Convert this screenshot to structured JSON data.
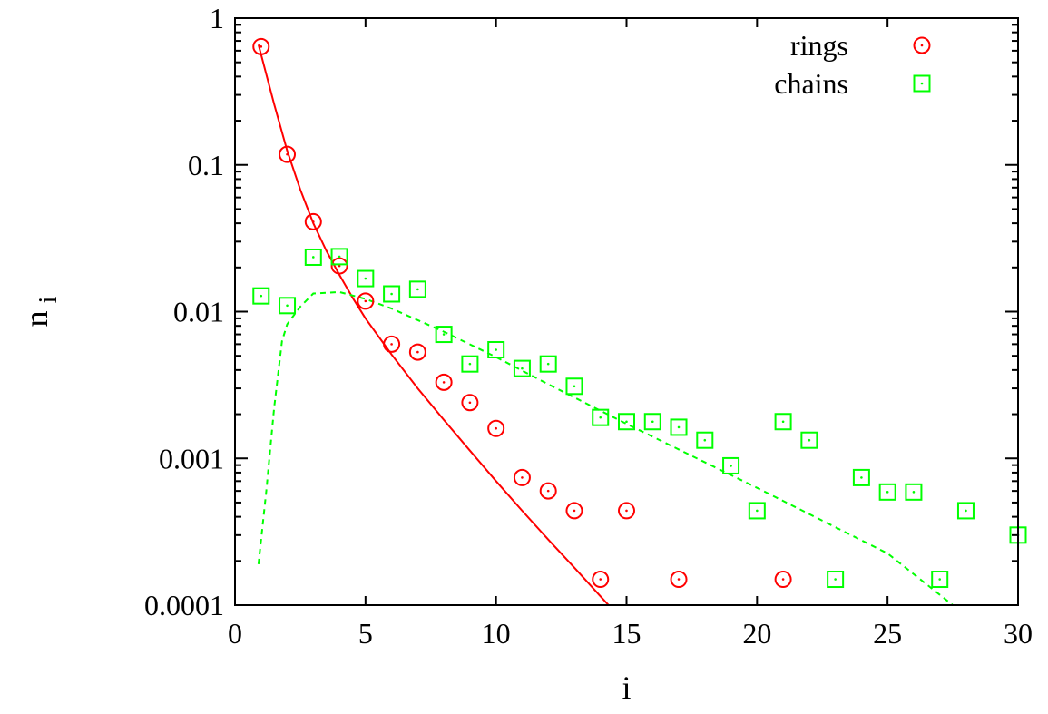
{
  "chart_data": {
    "type": "scatter",
    "xlabel": "i",
    "ylabel": {
      "base": "n",
      "subscript": "i"
    },
    "xlim": [
      0,
      30
    ],
    "ylim": [
      0.0001,
      1
    ],
    "yscale": "log",
    "grid": false,
    "legend_position": "top-right",
    "x_ticks": [
      {
        "value": 0,
        "label": "0"
      },
      {
        "value": 5,
        "label": "5"
      },
      {
        "value": 10,
        "label": "10"
      },
      {
        "value": 15,
        "label": "15"
      },
      {
        "value": 20,
        "label": "20"
      },
      {
        "value": 25,
        "label": "25"
      },
      {
        "value": 30,
        "label": "30"
      }
    ],
    "y_ticks": [
      {
        "value": 1,
        "label": "1"
      },
      {
        "value": 0.1,
        "label": "0.1"
      },
      {
        "value": 0.01,
        "label": "0.01"
      },
      {
        "value": 0.001,
        "label": "0.001"
      },
      {
        "value": 0.0001,
        "label": "0.0001"
      }
    ],
    "series": [
      {
        "name": "rings",
        "marker": "circle",
        "color": "#ff0000",
        "points": [
          [
            1,
            0.64
          ],
          [
            2,
            0.118
          ],
          [
            3,
            0.041
          ],
          [
            4,
            0.0205
          ],
          [
            5,
            0.0118
          ],
          [
            6,
            0.006
          ],
          [
            7,
            0.0053
          ],
          [
            8,
            0.0033
          ],
          [
            9,
            0.0024
          ],
          [
            10,
            0.0016
          ],
          [
            11,
            0.00074
          ],
          [
            12,
            0.0006
          ],
          [
            13,
            0.00044
          ],
          [
            14,
            0.00015
          ],
          [
            15,
            0.00044
          ],
          [
            17,
            0.00015
          ],
          [
            21,
            0.00015
          ]
        ]
      },
      {
        "name": "chains",
        "marker": "square",
        "color": "#00ff00",
        "points": [
          [
            1,
            0.0128
          ],
          [
            2,
            0.011
          ],
          [
            3,
            0.0235
          ],
          [
            4,
            0.0237
          ],
          [
            5,
            0.0168
          ],
          [
            6,
            0.0132
          ],
          [
            7,
            0.0142
          ],
          [
            8,
            0.007
          ],
          [
            9,
            0.0044
          ],
          [
            10,
            0.0055
          ],
          [
            11,
            0.0041
          ],
          [
            12,
            0.0044
          ],
          [
            13,
            0.0031
          ],
          [
            14,
            0.0019
          ],
          [
            15,
            0.00178
          ],
          [
            16,
            0.00178
          ],
          [
            17,
            0.00163
          ],
          [
            18,
            0.00133
          ],
          [
            19,
            0.00089
          ],
          [
            20,
            0.00044
          ],
          [
            21,
            0.00178
          ],
          [
            22,
            0.00133
          ],
          [
            23,
            0.00015
          ],
          [
            24,
            0.00074
          ],
          [
            25,
            0.00059
          ],
          [
            26,
            0.00059
          ],
          [
            27,
            0.00015
          ],
          [
            28,
            0.00044
          ],
          [
            30,
            0.0003
          ]
        ]
      }
    ],
    "fits": [
      {
        "series": "rings",
        "style": "solid",
        "color": "#ff0000",
        "points": [
          [
            0.9,
            0.66
          ],
          [
            1.5,
            0.26
          ],
          [
            2,
            0.125
          ],
          [
            2.5,
            0.068
          ],
          [
            3,
            0.04
          ],
          [
            3.5,
            0.026
          ],
          [
            4,
            0.0178
          ],
          [
            4.5,
            0.0125
          ],
          [
            5,
            0.009
          ],
          [
            6,
            0.0051
          ],
          [
            7,
            0.003
          ],
          [
            8,
            0.00183
          ],
          [
            9,
            0.00113
          ],
          [
            10,
            0.0007
          ],
          [
            11,
            0.00044
          ],
          [
            12,
            0.00028
          ],
          [
            13,
            0.00018
          ],
          [
            14,
            0.000115
          ],
          [
            14.5,
            9.2e-05
          ]
        ]
      },
      {
        "series": "chains",
        "style": "dashed",
        "color": "#00ff00",
        "points": [
          [
            0.9,
            0.00019
          ],
          [
            1.2,
            0.0006
          ],
          [
            1.5,
            0.0022
          ],
          [
            1.8,
            0.0063
          ],
          [
            2,
            0.0082
          ],
          [
            2.5,
            0.0108
          ],
          [
            3,
            0.0133
          ],
          [
            4,
            0.0136
          ],
          [
            5,
            0.0122
          ],
          [
            6,
            0.0105
          ],
          [
            8,
            0.0073
          ],
          [
            10,
            0.0049
          ],
          [
            12,
            0.0032
          ],
          [
            15,
            0.00172
          ],
          [
            20,
            0.00063
          ],
          [
            25,
            0.000225
          ],
          [
            27.5,
            0.0001
          ]
        ]
      }
    ]
  }
}
